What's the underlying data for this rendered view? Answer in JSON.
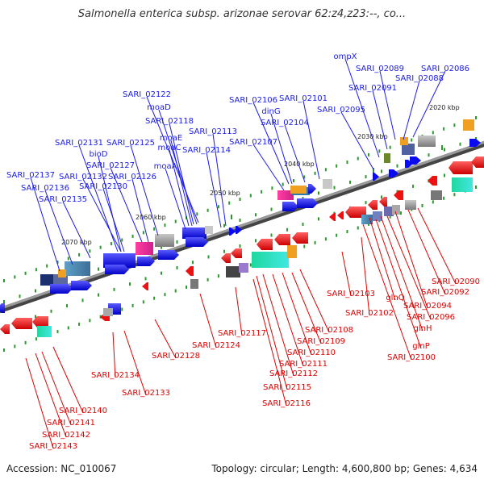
{
  "title": "Salmonella enterica subsp. arizonae serovar 62:z4,z23:--, co...",
  "footer": {
    "accession": "Accession: NC_010067",
    "summary": "Topology: circular; Length: 4,600,800 bp; Genes: 4,634"
  },
  "colors": {
    "forward_label": "#1a1aee",
    "reverse_label": "#e00000",
    "backbone": "#777777",
    "forward_gene": "#0a0af0",
    "reverse_gene": "#ee1111"
  },
  "position_ticks": [
    "2020 kbp",
    "2030 kbp",
    "2040 kbp",
    "2050 kbp",
    "2060 kbp",
    "2070 kbp"
  ],
  "forward_labels": [
    "ompX",
    "SARI_02086",
    "SARI_02089",
    "SARI_02088",
    "SARI_02091",
    "SARI_02095",
    "SARI_02101",
    "SARI_02106",
    "dinG",
    "SARI_02104",
    "SARI_02107",
    "SARI_02113",
    "SARI_02114",
    "SARI_02122",
    "moaD",
    "SARI_02118",
    "moaE",
    "moaC",
    "moaA",
    "SARI_02125",
    "SARI_02131",
    "bioD",
    "SARI_02127",
    "SARI_02137",
    "SARI_02132",
    "SARI_02126",
    "SARI_02136",
    "SARI_02130",
    "SARI_02135"
  ],
  "reverse_labels": [
    "SARI_02090",
    "SARI_02092",
    "SARI_02094",
    "SARI_02096",
    "glnH",
    "glnP",
    "SARI_02100",
    "glnQ",
    "SARI_02103",
    "SARI_02102",
    "SARI_02108",
    "SARI_02109",
    "SARI_02110",
    "SARI_02111",
    "SARI_02112",
    "SARI_02115",
    "SARI_02116",
    "SARI_02117",
    "SARI_02124",
    "SARI_02128",
    "SARI_02134",
    "SARI_02133",
    "SARI_02140",
    "SARI_02141",
    "SARI_02142",
    "SARI_02143"
  ]
}
